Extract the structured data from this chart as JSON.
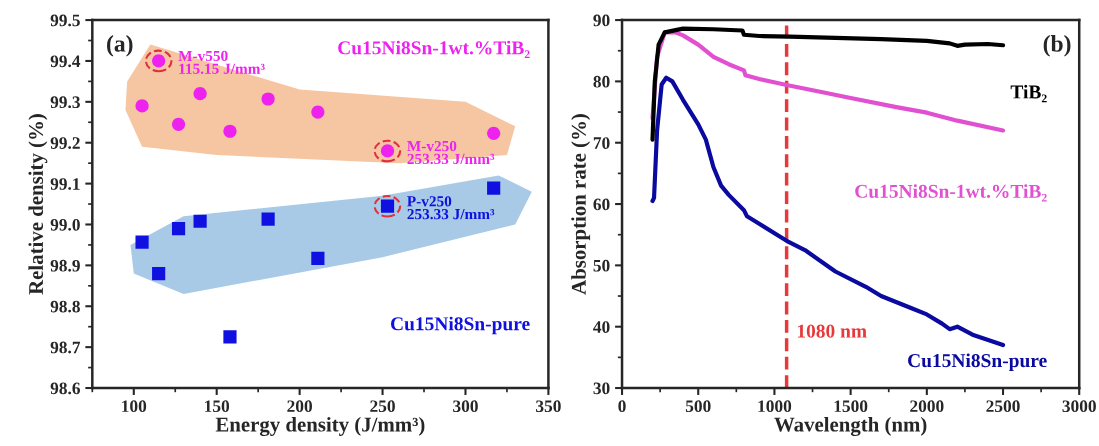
{
  "chart_data": [
    {
      "type": "scatter",
      "xlabel": "Energy density (J/mm³)",
      "ylabel": "Relative density (%)",
      "xlim": [
        75,
        350
      ],
      "xticks": [
        100,
        150,
        200,
        250,
        300,
        350
      ],
      "ylim": [
        98.6,
        99.5
      ],
      "yticks": [
        98.6,
        98.7,
        98.8,
        98.9,
        {
          "value": 99.0,
          "label": "99.0"
        },
        99.1,
        99.2,
        99.3,
        99.4,
        99.5
      ],
      "grid": false,
      "annotations": [
        "(a)",
        "M-v550\n115.15 J/mm³",
        "M-v250\n253.33 J/mm³",
        "P-v250\n253.33 J/mm³"
      ],
      "series": [
        {
          "name": "Cu15Ni8Sn-1wt.%TiB₂",
          "color": "#ee22ee",
          "marker": "circle",
          "x": [
            105,
            115,
            127,
            140,
            158,
            181,
            211,
            253,
            317
          ],
          "values": [
            99.29,
            99.4,
            99.245,
            99.32,
            99.228,
            99.307,
            99.275,
            99.18,
            99.223
          ]
        },
        {
          "name": "Cu15Ni8Sn-pure",
          "color": "#1010e0",
          "marker": "square",
          "x": [
            105,
            115,
            127,
            140,
            158,
            181,
            211,
            253,
            317
          ],
          "values": [
            98.957,
            98.88,
            98.99,
            99.008,
            98.725,
            99.013,
            98.917,
            99.045,
            99.089
          ]
        }
      ]
    },
    {
      "type": "line",
      "xlabel": "Wavelength (nm)",
      "ylabel": "Absorption rate (%)",
      "xlim": [
        0,
        3000
      ],
      "xticks": [
        0,
        500,
        1000,
        1500,
        2000,
        2500,
        3000
      ],
      "ylim": [
        30,
        90
      ],
      "yticks": [
        30,
        40,
        50,
        60,
        70,
        80,
        90
      ],
      "grid": false,
      "marker": "none",
      "line_style": "solid",
      "annotations": [
        "(b)"
      ],
      "ref_lines": [
        {
          "axis": "x",
          "value": 1080,
          "label": "1080 nm",
          "color": "#e8383a",
          "line_style": "dashed"
        }
      ],
      "series": [
        {
          "name": "TiB₂",
          "color": "#000000",
          "x": [
            200,
            215,
            240,
            280,
            400,
            600,
            790,
            800,
            900,
            1100,
            1400,
            1700,
            2000,
            2150,
            2200,
            2250,
            2400,
            2500
          ],
          "values": [
            70.5,
            80,
            86,
            88,
            88.6,
            88.5,
            88.3,
            87.6,
            87.4,
            87.3,
            87.1,
            86.9,
            86.6,
            86.2,
            85.8,
            86.0,
            86.1,
            85.9
          ]
        },
        {
          "name": "Cu15Ni8Sn-1wt.%TiB₂",
          "color": "#e050d0",
          "x": [
            200,
            230,
            280,
            350,
            400,
            500,
            600,
            700,
            800,
            810,
            900,
            1080,
            1300,
            1500,
            1800,
            2000,
            2200,
            2500
          ],
          "values": [
            74,
            84,
            88,
            88,
            87.5,
            86,
            84,
            82.8,
            81.8,
            81,
            80.4,
            79.4,
            78.3,
            77.3,
            75.8,
            74.9,
            73.6,
            72
          ]
        },
        {
          "name": "Cu15Ni8Sn-pure",
          "color": "#0a0aa0",
          "x": [
            200,
            210,
            230,
            260,
            290,
            330,
            400,
            450,
            500,
            550,
            600,
            650,
            700,
            800,
            820,
            900,
            1080,
            1200,
            1400,
            1600,
            1700,
            1900,
            2000,
            2100,
            2150,
            2200,
            2300,
            2500
          ],
          "values": [
            60.5,
            61,
            72,
            79.5,
            80.6,
            80,
            77,
            75,
            73,
            70.5,
            66,
            63,
            61.5,
            59,
            58,
            56.8,
            54,
            52.5,
            49,
            46.5,
            45,
            43,
            42,
            40.5,
            39.6,
            40,
            38.7,
            37
          ]
        }
      ]
    }
  ]
}
